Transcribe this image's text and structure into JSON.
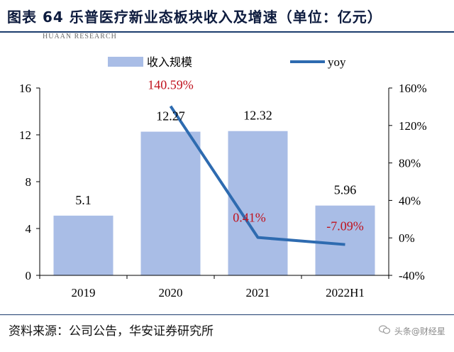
{
  "header": {
    "title": "图表 64 乐普医疗新业态板块收入及增速（单位：亿元）"
  },
  "logo_text": "HUAAN RESEARCH",
  "footer": {
    "source": "资料来源：公司公告，华安证券研究所"
  },
  "watermark": {
    "text": "头条@财经星",
    "icon": "wechat-icon"
  },
  "chart_data": {
    "type": "bar",
    "categories": [
      "2019",
      "2020",
      "2021",
      "2022H1"
    ],
    "series": [
      {
        "name": "收入规模",
        "type": "bar",
        "axis": "left",
        "values": [
          5.1,
          12.27,
          12.32,
          5.96
        ],
        "labels": [
          "5.1",
          "12.27",
          "12.32",
          "5.96"
        ],
        "color": "#a9bde6"
      },
      {
        "name": "yoy",
        "type": "line",
        "axis": "right",
        "x": [
          "2020",
          "2021",
          "2022H1"
        ],
        "values": [
          140.59,
          0.41,
          -7.09
        ],
        "labels": [
          "140.59%",
          "0.41%",
          "-7.09%"
        ],
        "color": "#2e6bb0",
        "label_color": "#c0121d"
      }
    ],
    "y_left": {
      "range": [
        0,
        16
      ],
      "ticks": [
        "0",
        "4",
        "8",
        "12",
        "16"
      ]
    },
    "y_right": {
      "range": [
        -40,
        160
      ],
      "ticks": [
        "-40%",
        "0%",
        "40%",
        "80%",
        "120%",
        "160%"
      ]
    },
    "grid": false,
    "legend": "top"
  }
}
